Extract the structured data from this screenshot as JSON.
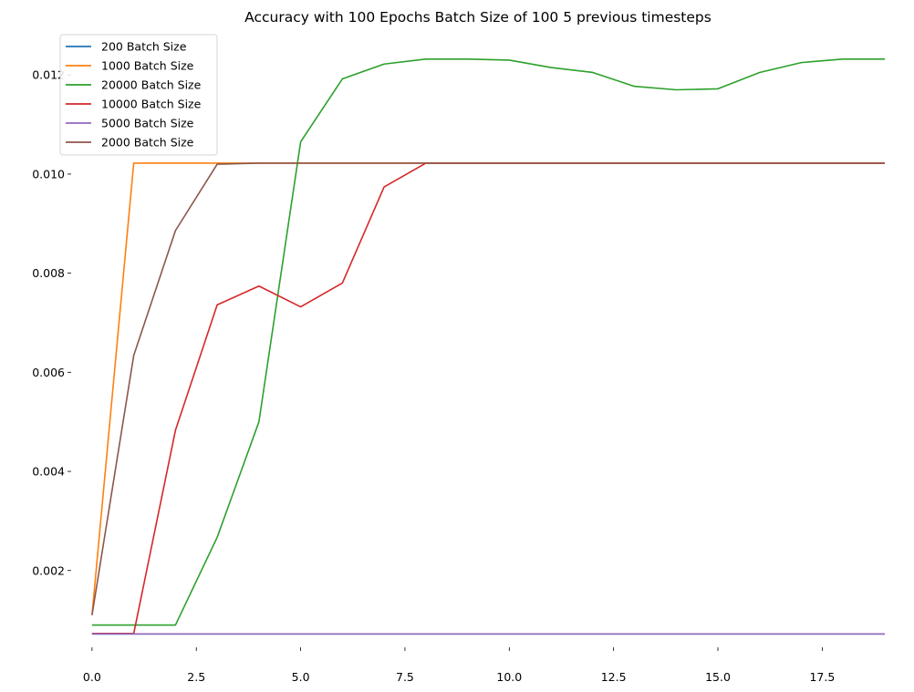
{
  "chart_data": {
    "type": "line",
    "title": "Accuracy with 100 Epochs Batch Size of 100 5 previous timesteps",
    "xlabel": "",
    "ylabel": "",
    "xlim": [
      -0.5,
      19.0
    ],
    "ylim": [
      0.00045,
      0.01285
    ],
    "xticks": [
      0.0,
      2.5,
      5.0,
      7.5,
      10.0,
      12.5,
      15.0,
      17.5
    ],
    "xtick_labels": [
      "0.0",
      "2.5",
      "5.0",
      "7.5",
      "10.0",
      "12.5",
      "15.0",
      "17.5"
    ],
    "yticks": [
      0.002,
      0.004,
      0.006,
      0.008,
      0.01,
      0.012
    ],
    "ytick_labels": [
      "0.002",
      "0.004",
      "0.006",
      "0.008",
      "0.010",
      "0.012"
    ],
    "grid": false,
    "legend_position": "top-left",
    "x": [
      0,
      1,
      2,
      3,
      4,
      5,
      6,
      7,
      8,
      9,
      10,
      11,
      12,
      13,
      14,
      15,
      16,
      17,
      18,
      19
    ],
    "series": [
      {
        "name": "200 Batch Size",
        "color": "#1f77b4",
        "values": [
          0.00072,
          0.00072,
          0.00072,
          0.00072,
          0.00072,
          0.00072,
          0.00072,
          0.00072,
          0.00072,
          0.00072,
          0.00072,
          0.00072,
          0.00072,
          0.00072,
          0.00072,
          0.00072,
          0.00072,
          0.00072,
          0.00072,
          0.00072
        ]
      },
      {
        "name": "1000 Batch Size",
        "color": "#ff7f0e",
        "values": [
          0.0011,
          0.01022,
          0.01022,
          0.01022,
          0.01022,
          0.01022,
          0.01022,
          0.01022,
          0.01022,
          0.01022,
          0.01022,
          0.01022,
          0.01022,
          0.01022,
          0.01022,
          0.01022,
          0.01022,
          0.01022,
          0.01022,
          0.01022
        ]
      },
      {
        "name": "20000 Batch Size",
        "color": "#2ca02c",
        "values": [
          0.0009,
          0.0009,
          0.0009,
          0.00267,
          0.005,
          0.01065,
          0.01192,
          0.01222,
          0.01232,
          0.01232,
          0.0123,
          0.01215,
          0.01205,
          0.01177,
          0.0117,
          0.01172,
          0.01205,
          0.01225,
          0.01232,
          0.01232
        ]
      },
      {
        "name": "10000 Batch Size",
        "color": "#d62728",
        "values": [
          0.00073,
          0.00073,
          0.00483,
          0.00736,
          0.00774,
          0.00732,
          0.0078,
          0.00974,
          0.01022,
          0.01022,
          0.01022,
          0.01022,
          0.01022,
          0.01022,
          0.01022,
          0.01022,
          0.01022,
          0.01022,
          0.01022,
          0.01022
        ]
      },
      {
        "name": "5000 Batch Size",
        "color": "#9467bd",
        "values": [
          0.00072,
          0.00072,
          0.00072,
          0.00072,
          0.00072,
          0.00072,
          0.00072,
          0.00072,
          0.00072,
          0.00072,
          0.00072,
          0.00072,
          0.00072,
          0.00072,
          0.00072,
          0.00072,
          0.00072,
          0.00072,
          0.00072,
          0.00072
        ]
      },
      {
        "name": "2000 Batch Size",
        "color": "#8c564b",
        "values": [
          0.0011,
          0.00634,
          0.00886,
          0.0102,
          0.01022,
          0.01022,
          0.01022,
          0.01022,
          0.01022,
          0.01022,
          0.01022,
          0.01022,
          0.01022,
          0.01022,
          0.01022,
          0.01022,
          0.01022,
          0.01022,
          0.01022,
          0.01022
        ]
      }
    ]
  }
}
